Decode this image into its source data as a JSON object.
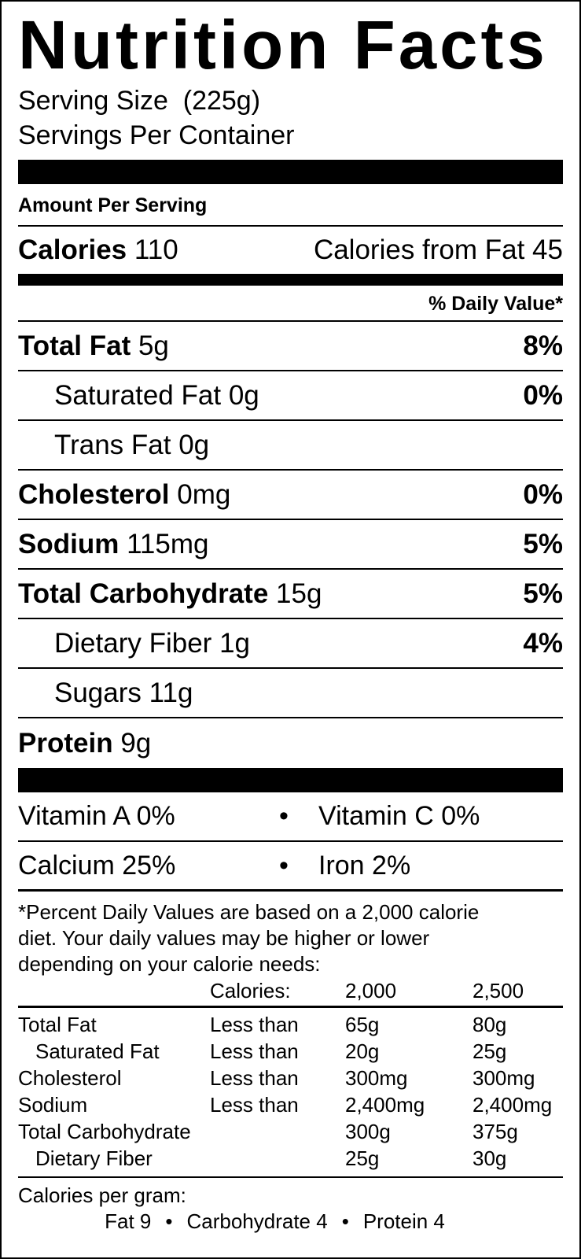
{
  "title": "Nutrition Facts",
  "serving_size": "Serving Size  (225g)",
  "servings_per_container": "Servings Per Container",
  "amount_per_serving": "Amount Per Serving",
  "calories": {
    "label": "Calories",
    "value": "110",
    "from_fat": "Calories from Fat 45"
  },
  "daily_value_header": "% Daily Value*",
  "nutrients": [
    {
      "label": "Total Fat",
      "amount": "5g",
      "dv": "8%"
    },
    {
      "label": "Saturated Fat",
      "amount": "0g",
      "dv": "0%"
    },
    {
      "label": "Trans Fat",
      "amount": "0g",
      "dv": ""
    },
    {
      "label": "Cholesterol",
      "amount": "0mg",
      "dv": "0%"
    },
    {
      "label": "Sodium",
      "amount": "115mg",
      "dv": "5%"
    },
    {
      "label": "Total Carbohydrate",
      "amount": "15g",
      "dv": "5%"
    },
    {
      "label": "Dietary Fiber",
      "amount": "1g",
      "dv": "4%"
    },
    {
      "label": "Sugars",
      "amount": "11g",
      "dv": ""
    },
    {
      "label": "Protein",
      "amount": "9g",
      "dv": ""
    }
  ],
  "vitamins": [
    {
      "left": "Vitamin A 0%",
      "right": "Vitamin C 0%"
    },
    {
      "left": "Calcium 25%",
      "right": "Iron 2%"
    }
  ],
  "bullet": "•",
  "footnote": [
    "*Percent Daily Values are based on a 2,000 calorie",
    "diet. Your daily values may be higher or lower",
    "depending on your calorie needs:"
  ],
  "dv_table": {
    "header": [
      "",
      "Calories:",
      "2,000",
      "2,500"
    ],
    "rows": [
      [
        "Total Fat",
        "Less than",
        "65g",
        "80g"
      ],
      [
        "Saturated Fat",
        "Less than",
        "20g",
        "25g"
      ],
      [
        "Cholesterol",
        "Less than",
        "300mg",
        "300mg"
      ],
      [
        "Sodium",
        "Less than",
        "2,400mg",
        "2,400mg"
      ],
      [
        "Total Carbohydrate",
        "",
        "300g",
        "375g"
      ],
      [
        "Dietary Fiber",
        "",
        "25g",
        "30g"
      ]
    ]
  },
  "calories_per_gram": {
    "label": "Calories per gram:",
    "fat": "Fat 9",
    "carbohydrate": "Carbohydrate 4",
    "protein": "Protein 4"
  }
}
